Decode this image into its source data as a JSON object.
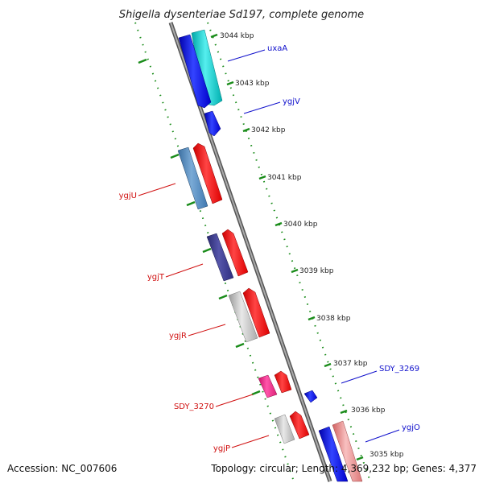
{
  "title": "Shigella dysenteriae Sd197, complete genome",
  "footer": {
    "accession": "Accession: NC_007606",
    "topology": "Topology: circular; Length: 4,369,232 bp; Genes: 4,377"
  },
  "ticks": [
    {
      "label": "3044 kbp"
    },
    {
      "label": "3043 kbp"
    },
    {
      "label": "3042 kbp"
    },
    {
      "label": "3041 kbp"
    },
    {
      "label": "3040 kbp"
    },
    {
      "label": "3039 kbp"
    },
    {
      "label": "3038 kbp"
    },
    {
      "label": "3037 kbp"
    },
    {
      "label": "3036 kbp"
    },
    {
      "label": "3035 kbp"
    }
  ],
  "gene_labels": {
    "uxaA": "uxaA",
    "ygjV": "ygjV",
    "ygjU": "ygjU",
    "ygjT": "ygjT",
    "ygjR": "ygjR",
    "SDY_3269": "SDY_3269",
    "SDY_3270": "SDY_3270",
    "ygjP": "ygjP",
    "ygjO": "ygjO"
  },
  "colors": {
    "backbone": "#888888",
    "tick_green": "#1a8c1a",
    "label_blue": "#1010cc",
    "label_red": "#d01010"
  }
}
